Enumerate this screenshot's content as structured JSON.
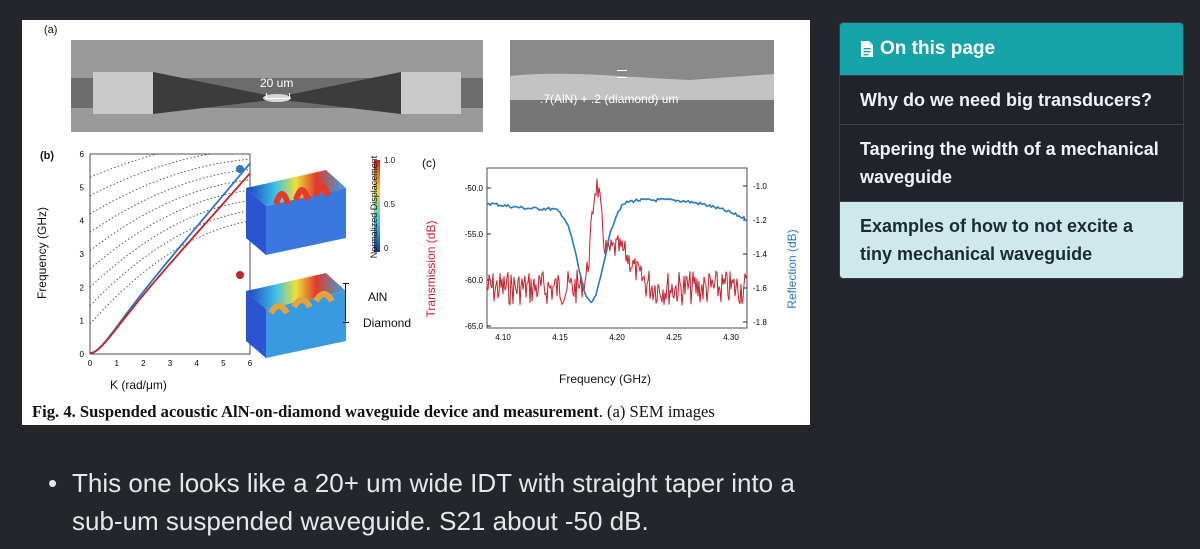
{
  "figure": {
    "label_a": "(a)",
    "label_b": "(b)",
    "label_c": "(c)",
    "sem_scale_1": "20 um",
    "sem_scale_2": ".7(AlN) + .2 (diamond) um",
    "b_ylabel": "Frequency (GHz)",
    "b_xlabel": "K (rad/μm)",
    "b_yticks": [
      "0",
      "1",
      "2",
      "3",
      "4",
      "5",
      "6"
    ],
    "b_xticks": [
      "0",
      "1",
      "2",
      "3",
      "4",
      "5",
      "6"
    ],
    "colorbar_label": "Normalized Displacement",
    "colorbar_ticks": [
      "1.0",
      "0.5",
      "0"
    ],
    "layer_top": "AlN",
    "layer_bottom": "Diamond",
    "c_ylabel_left": "Transmission (dB)",
    "c_ylabel_right": "Reflection (dB)",
    "c_xlabel": "Frequency (GHz)",
    "c_yticks_left": [
      "-50.0",
      "-55.0",
      "-60.0",
      "-65.0"
    ],
    "c_yticks_right": [
      "-1.0",
      "-1.2",
      "-1.4",
      "-1.6",
      "-1.8"
    ],
    "c_xticks": [
      "4.10",
      "4.15",
      "4.20",
      "4.25",
      "4.30"
    ],
    "caption_bold": "Fig. 4. Suspended acoustic AlN-on-diamond waveguide device and measurement",
    "caption_rest": ". (a) SEM images",
    "colors": {
      "transmission": "#c8202c",
      "reflection": "#2a78c2",
      "disp_blue": "#2a6fcf",
      "disp_red": "#c8202c"
    }
  },
  "bullet": {
    "text": "This one looks like a 20+ um wide IDT with straight taper into a sub-um suspended waveguide. S21 about -50 dB."
  },
  "toc": {
    "title": "On this page",
    "icon": "document-icon",
    "items": [
      {
        "label": "Why do we need big transducers?",
        "active": false
      },
      {
        "label": "Tapering the width of a mechanical waveguide",
        "active": false
      },
      {
        "label": "Examples of how to not excite a tiny mechanical waveguide",
        "active": true
      }
    ]
  }
}
